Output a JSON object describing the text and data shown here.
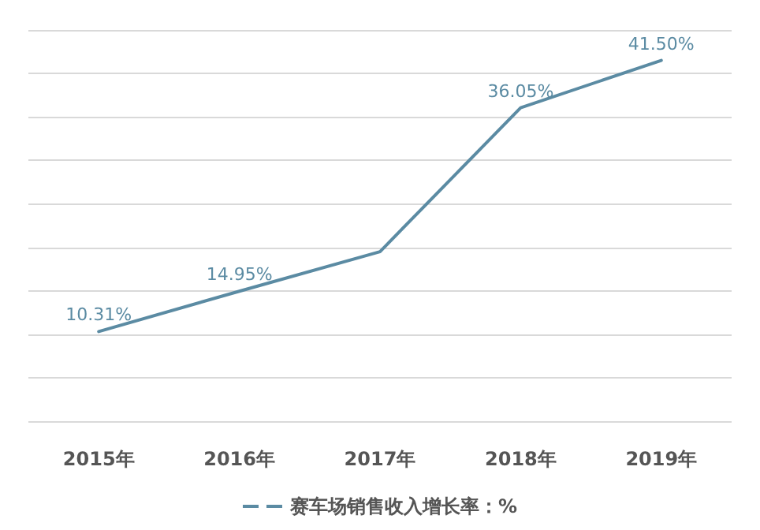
{
  "chart_data": {
    "type": "line",
    "categories": [
      "2015年",
      "2016年",
      "2017年",
      "2018年",
      "2019年"
    ],
    "series": [
      {
        "name": "赛车场销售收入增长率：%",
        "color": "#5b8ba3",
        "values": [
          10.31,
          14.95,
          19.5,
          36.05,
          41.5
        ],
        "value_labels": [
          "10.31%",
          "14.95%",
          null,
          "36.05%",
          "41.50%"
        ]
      }
    ],
    "ylim": [
      0,
      45
    ],
    "yticks": [
      {
        "value": 0,
        "label": null
      },
      {
        "value": 5,
        "label": null
      },
      {
        "value": 10,
        "label": null
      },
      {
        "value": 15,
        "label": null
      },
      {
        "value": 20,
        "label": null
      },
      {
        "value": 25,
        "label": null
      },
      {
        "value": 30,
        "label": null
      },
      {
        "value": 35,
        "label": null
      },
      {
        "value": 40,
        "label": null
      },
      {
        "value": 45,
        "label": null
      }
    ],
    "tick_labels": "x",
    "grid": "y",
    "legend": "bottom",
    "marker": "none",
    "line_style": "solid"
  }
}
